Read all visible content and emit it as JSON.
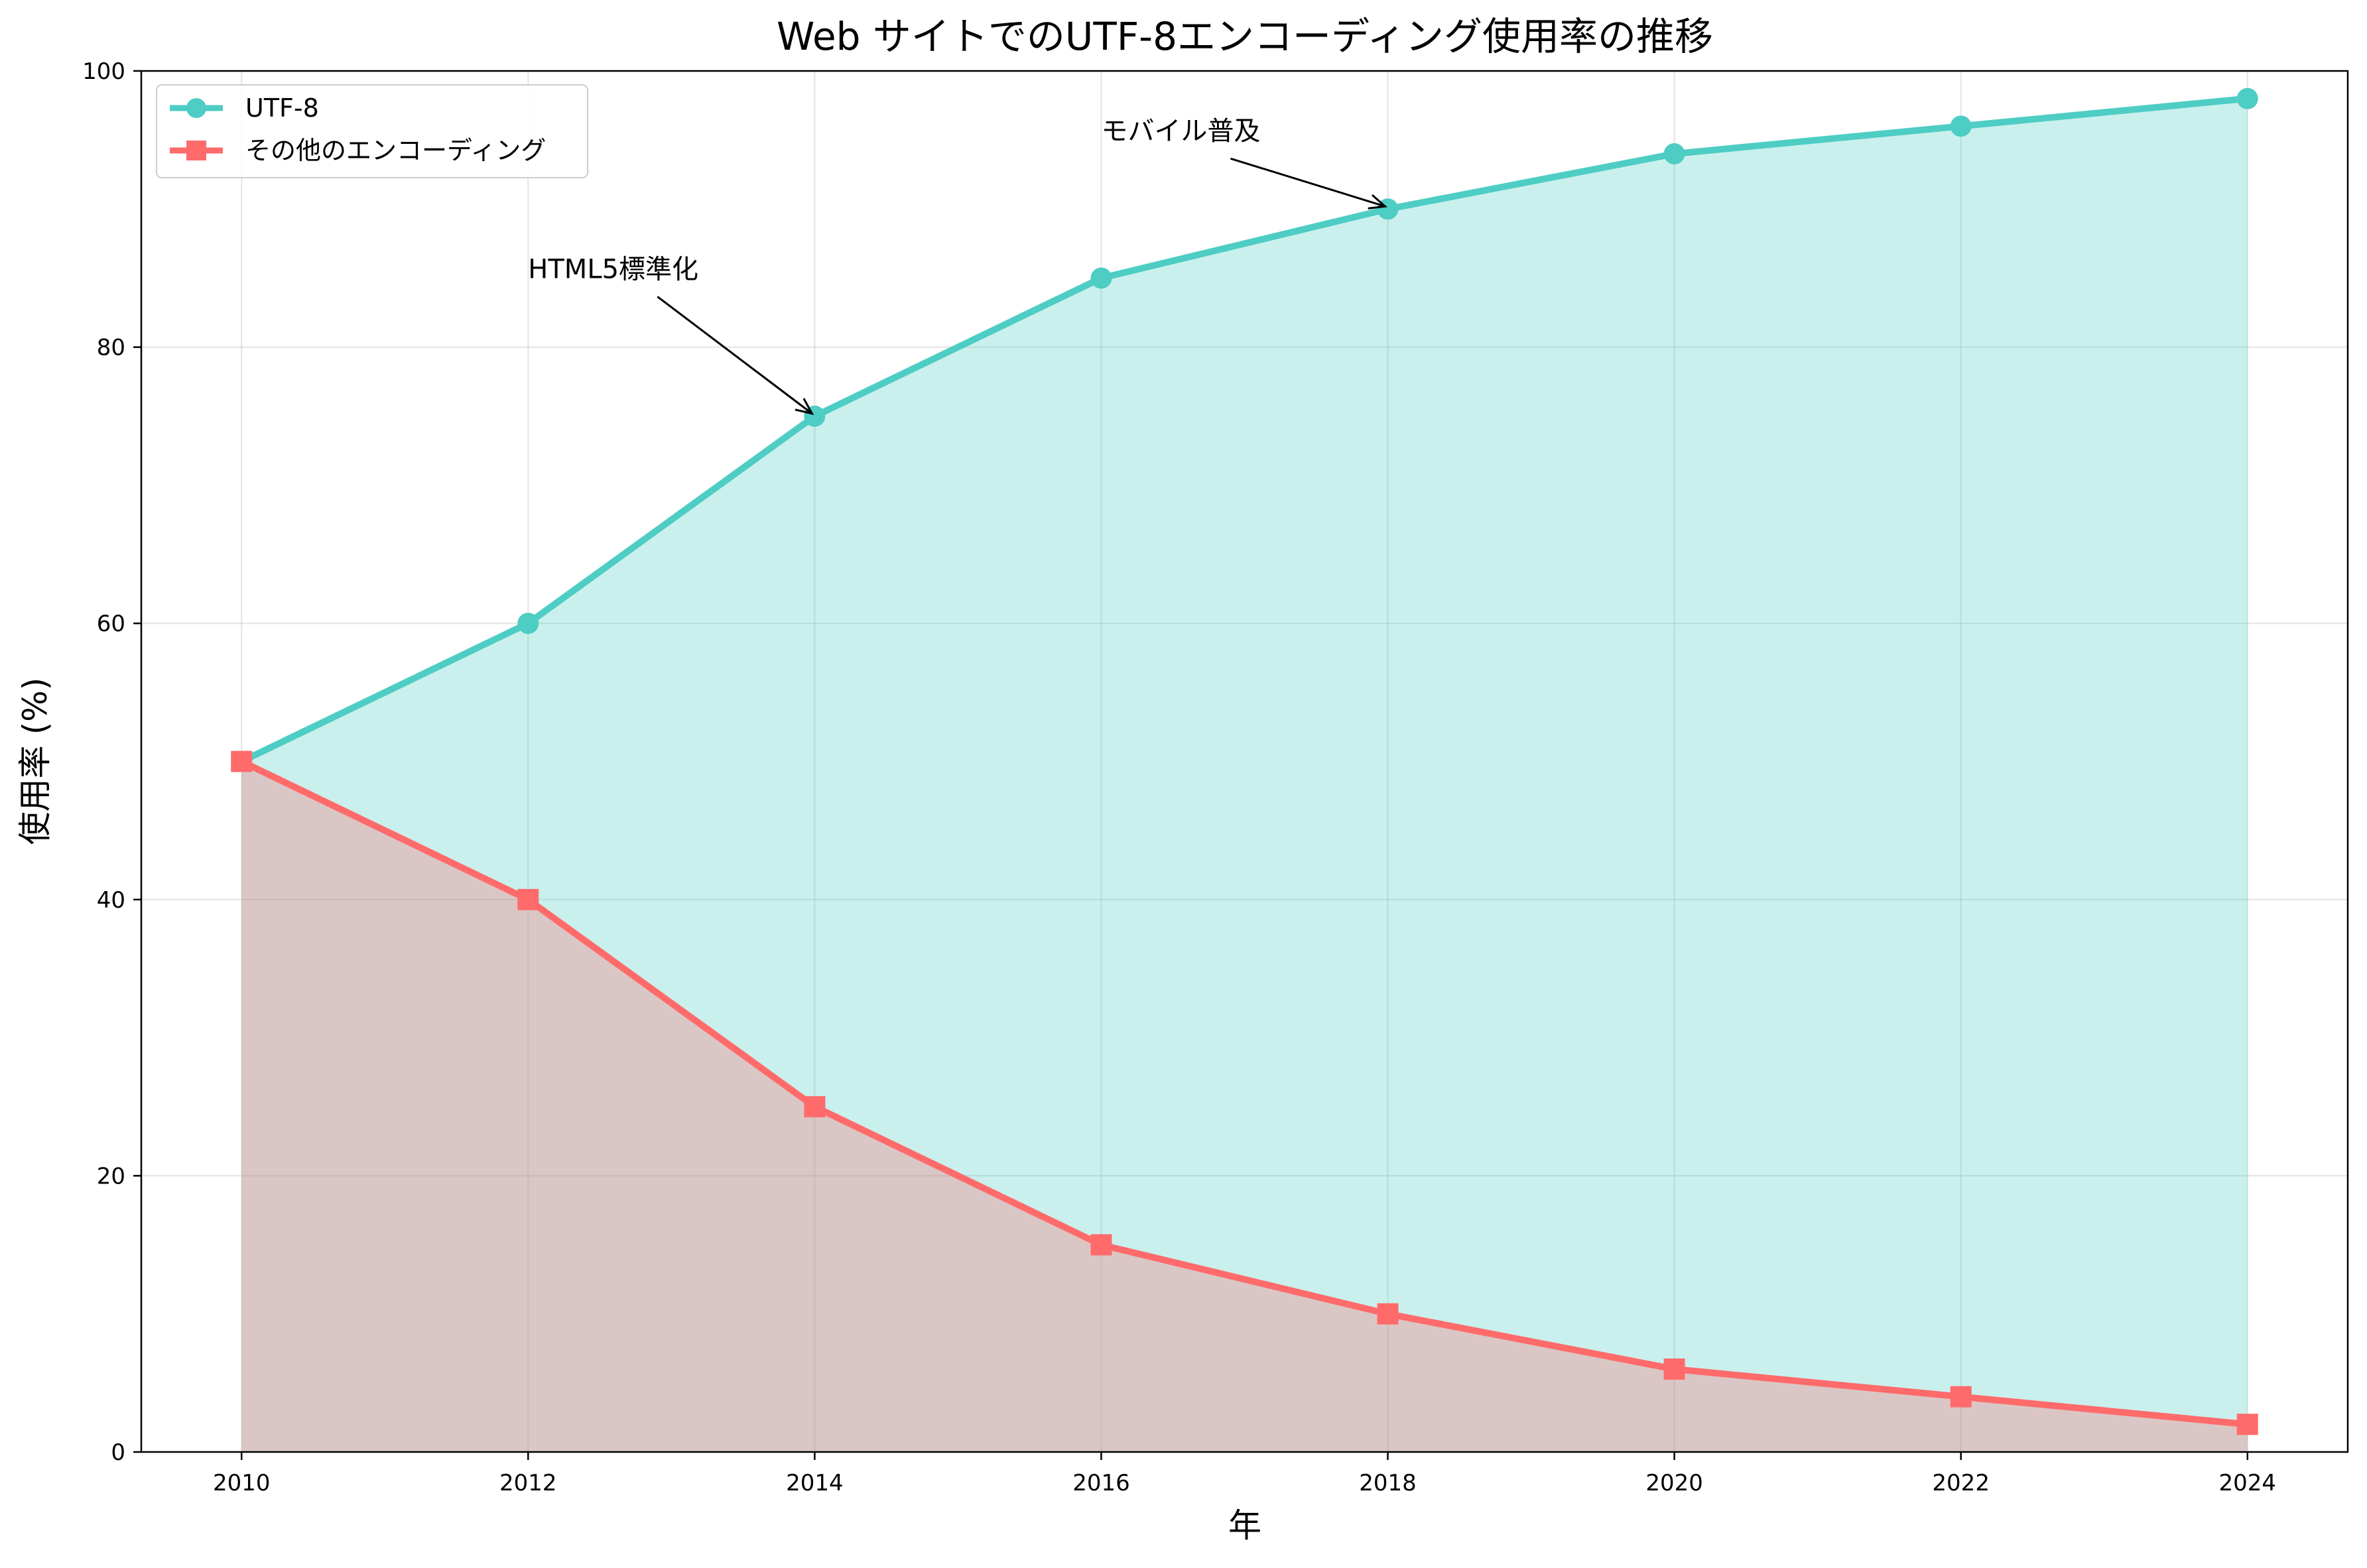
{
  "chart_data": {
    "type": "area",
    "title": "Web サイトでのUTF-8エンコーディング使用率の推移",
    "xlabel": "年",
    "ylabel": "使用率 (%)",
    "x": [
      2010,
      2012,
      2014,
      2016,
      2018,
      2020,
      2022,
      2024
    ],
    "xlim": [
      2009.3,
      2024.7
    ],
    "ylim": [
      0,
      100
    ],
    "xticks": [
      "2010",
      "2012",
      "2014",
      "2016",
      "2018",
      "2020",
      "2022",
      "2024"
    ],
    "yticks": [
      "0",
      "20",
      "40",
      "60",
      "80",
      "100"
    ],
    "grid": true,
    "legend_position": "top-left",
    "series": [
      {
        "name": "UTF-8",
        "values": [
          50,
          60,
          75,
          85,
          90,
          94,
          96,
          98
        ],
        "color": "#4ecdc4",
        "marker": "circle"
      },
      {
        "name": "その他のエンコーディング",
        "values": [
          50,
          40,
          25,
          15,
          10,
          6,
          4,
          2
        ],
        "color": "#ff6b6b",
        "marker": "square"
      }
    ],
    "annotations": [
      {
        "text": "HTML5標準化",
        "x": 2014,
        "y": 75,
        "text_x": 2012,
        "text_y": 85
      },
      {
        "text": "モバイル普及",
        "x": 2018,
        "y": 90,
        "text_x": 2016,
        "text_y": 95
      }
    ]
  }
}
